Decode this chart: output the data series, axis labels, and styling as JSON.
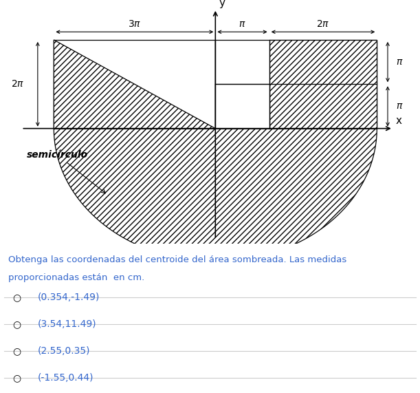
{
  "bg_color": "#ffffff",
  "text_color": "#000000",
  "blue_color": "#3366cc",
  "pi": 3.14159265358979,
  "question_text": "Obtenga las coordenadas del centroide del área sombreada. Las medidas\nproporcionadas están  en cm.",
  "options": [
    "(0.354,-1.49)",
    "(3.54,11.49)",
    "(2.55,0.35)",
    "(-1.55,0.44)"
  ],
  "fig_width": 6.11,
  "fig_height": 5.71,
  "dpi": 100
}
